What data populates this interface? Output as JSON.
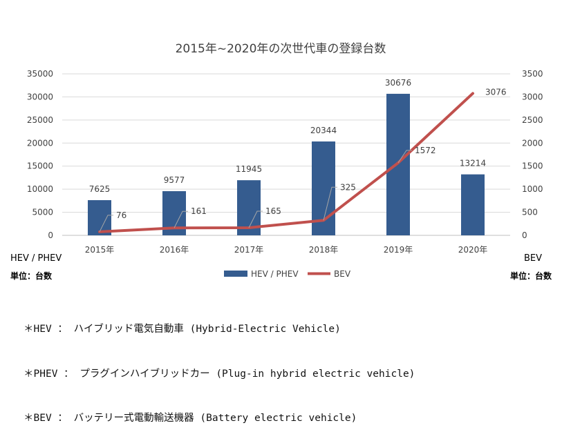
{
  "chart_data": {
    "type": "bar+line",
    "title": "2015年~2020年の次世代車の登録台数",
    "categories": [
      "2015年",
      "2016年",
      "2017年",
      "2018年",
      "2019年",
      "2020年"
    ],
    "series": [
      {
        "name": "HEV / PHEV",
        "type": "bar",
        "axis": "left",
        "color": "#355C8F",
        "values": [
          7625,
          9577,
          11945,
          20344,
          30676,
          13214
        ]
      },
      {
        "name": "BEV",
        "type": "line",
        "axis": "right",
        "color": "#C0504D",
        "values": [
          76,
          161,
          165,
          325,
          1572,
          3076
        ]
      }
    ],
    "y_left": {
      "min": 0,
      "max": 35000,
      "step": 5000,
      "ticks": [
        "0",
        "5000",
        "10000",
        "15000",
        "20000",
        "25000",
        "30000",
        "35000"
      ]
    },
    "y_right": {
      "min": 0,
      "max": 3500,
      "step": 500,
      "ticks": [
        "0",
        "500",
        "1000",
        "1500",
        "2000",
        "2500",
        "3000",
        "3500"
      ]
    },
    "grid": true,
    "legend": "bottom"
  },
  "left_axis_name": "HEV / PHEV",
  "left_unit": "単位：台数",
  "right_axis_name": "BEV",
  "right_unit": "単位：台数",
  "notes": [
    "＊HEV ： ハイブリッド電気自動車 (Hybrid-Electric Vehicle)",
    "＊PHEV ： プラグインハイブリッドカー (Plug-in hybrid electric vehicle)",
    "＊BEV ： バッテリー式電動輸送機器 (Battery electric vehicle)"
  ]
}
